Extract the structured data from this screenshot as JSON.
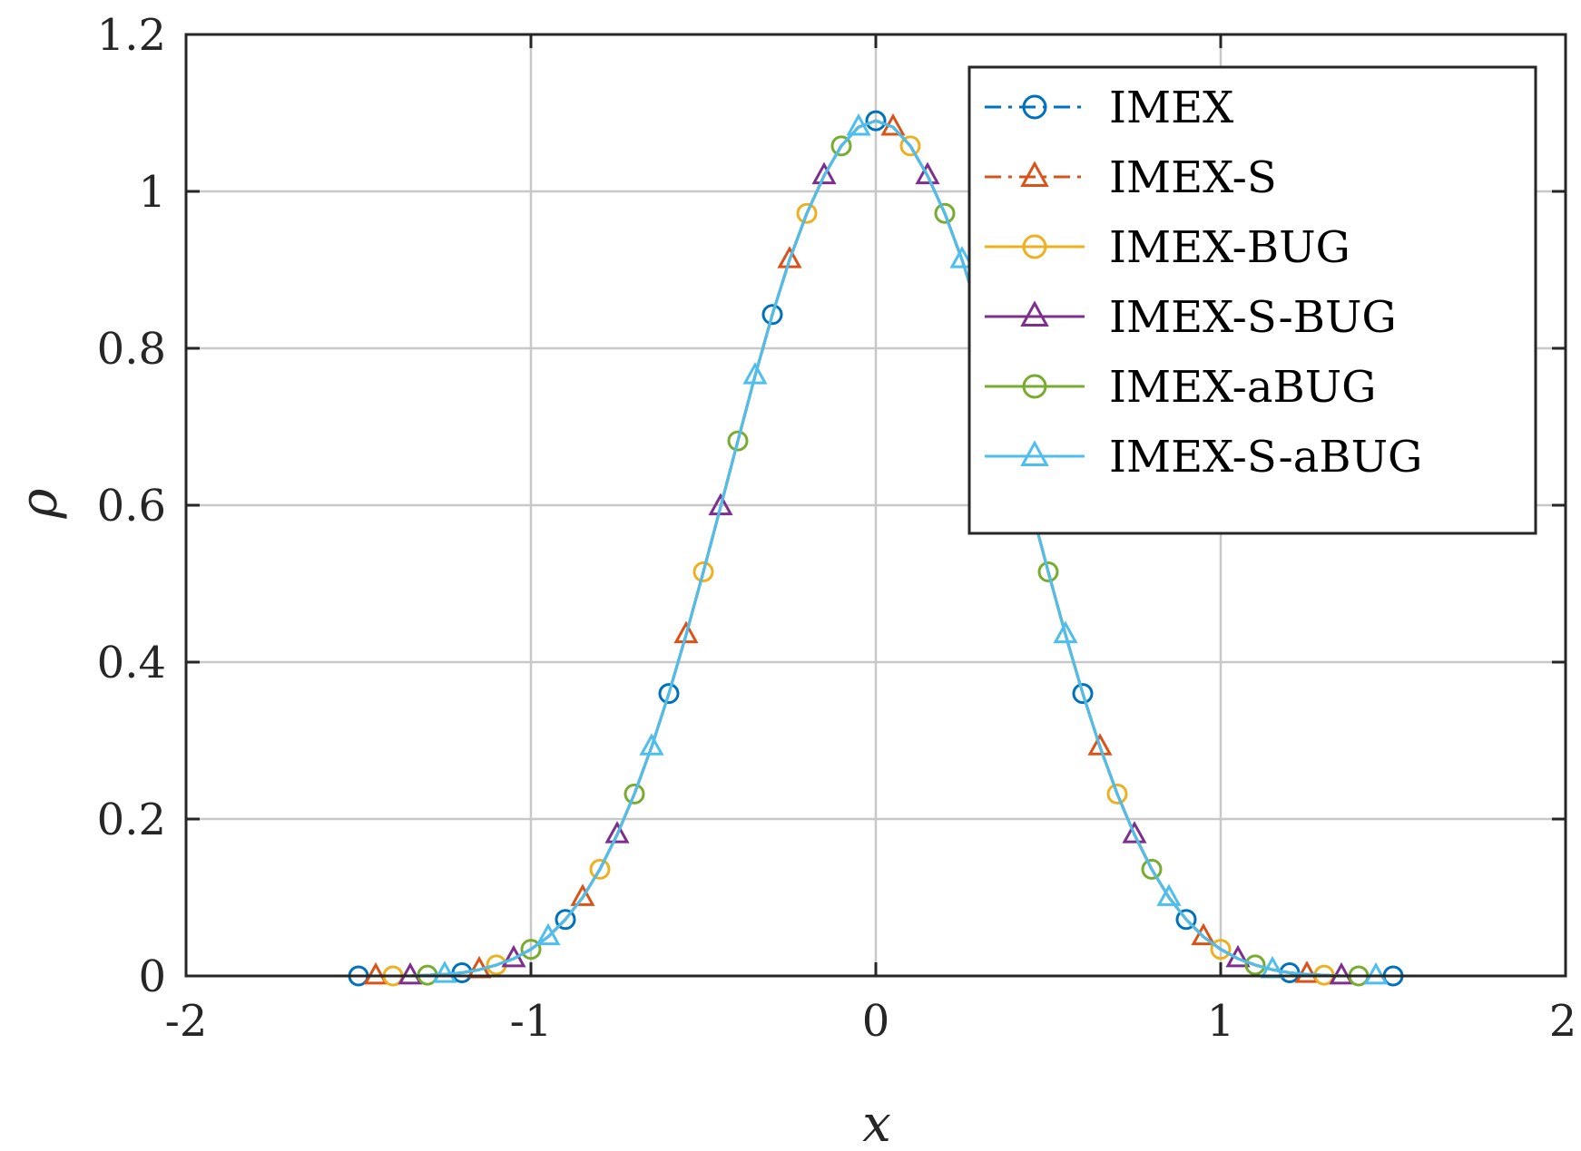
{
  "chart_data": {
    "type": "line",
    "xlabel": "x",
    "ylabel": "ρ",
    "xlim": [
      -2,
      2
    ],
    "ylim": [
      0,
      1.2
    ],
    "xticks": [
      -2,
      -1,
      0,
      1,
      2
    ],
    "xtick_labels": [
      "-2",
      "-1",
      "0",
      "1",
      "2"
    ],
    "yticks": [
      0,
      0.2,
      0.4,
      0.6,
      0.8,
      1,
      1.2
    ],
    "ytick_labels": [
      "0",
      "0.2",
      "0.4",
      "0.6",
      "0.8",
      "1",
      "1.2"
    ],
    "grid": true,
    "legend_position": "top-right",
    "curve_x": [
      -1.5,
      -1.45,
      -1.4,
      -1.35,
      -1.3,
      -1.25,
      -1.2,
      -1.15,
      -1.1,
      -1.05,
      -1.0,
      -0.95,
      -0.9,
      -0.85,
      -0.8,
      -0.75,
      -0.7,
      -0.65,
      -0.6,
      -0.55,
      -0.5,
      -0.45,
      -0.4,
      -0.35,
      -0.3,
      -0.25,
      -0.2,
      -0.15,
      -0.1,
      -0.05,
      0.0,
      0.05,
      0.1,
      0.15,
      0.2,
      0.25,
      0.3,
      0.35,
      0.4,
      0.45,
      0.5,
      0.55,
      0.6,
      0.65,
      0.7,
      0.75,
      0.8,
      0.85,
      0.9,
      0.95,
      1.0,
      1.05,
      1.1,
      1.15,
      1.2,
      1.25,
      1.3,
      1.35,
      1.4,
      1.45,
      1.5
    ],
    "curve_y": [
      0.0,
      0.0,
      0.0,
      0.0,
      0.001,
      0.002,
      0.004,
      0.008,
      0.014,
      0.022,
      0.034,
      0.05,
      0.072,
      0.1,
      0.136,
      0.18,
      0.232,
      0.292,
      0.36,
      0.435,
      0.515,
      0.598,
      0.682,
      0.765,
      0.843,
      0.913,
      0.972,
      1.02,
      1.058,
      1.082,
      1.09,
      1.082,
      1.058,
      1.02,
      0.972,
      0.913,
      0.843,
      0.765,
      0.682,
      0.598,
      0.515,
      0.435,
      0.36,
      0.292,
      0.232,
      0.18,
      0.136,
      0.1,
      0.072,
      0.05,
      0.034,
      0.022,
      0.014,
      0.008,
      0.004,
      0.002,
      0.001,
      0.0,
      0.0,
      0.0,
      0.0
    ],
    "series": [
      {
        "name": "IMEX",
        "color": "#0072BD",
        "line_style": "dash-dot",
        "marker": "circle",
        "marker_offset": 0
      },
      {
        "name": "IMEX-S",
        "color": "#D95319",
        "line_style": "dash-dot",
        "marker": "triangle",
        "marker_offset": 1
      },
      {
        "name": "IMEX-BUG",
        "color": "#EDB120",
        "line_style": "solid",
        "marker": "circle",
        "marker_offset": 2
      },
      {
        "name": "IMEX-S-BUG",
        "color": "#7E2F8E",
        "line_style": "solid",
        "marker": "triangle",
        "marker_offset": 3
      },
      {
        "name": "IMEX-aBUG",
        "color": "#77AC30",
        "line_style": "solid",
        "marker": "circle",
        "marker_offset": 4
      },
      {
        "name": "IMEX-S-aBUG",
        "color": "#4DBEEE",
        "line_style": "solid",
        "marker": "triangle",
        "marker_offset": 5
      }
    ]
  }
}
